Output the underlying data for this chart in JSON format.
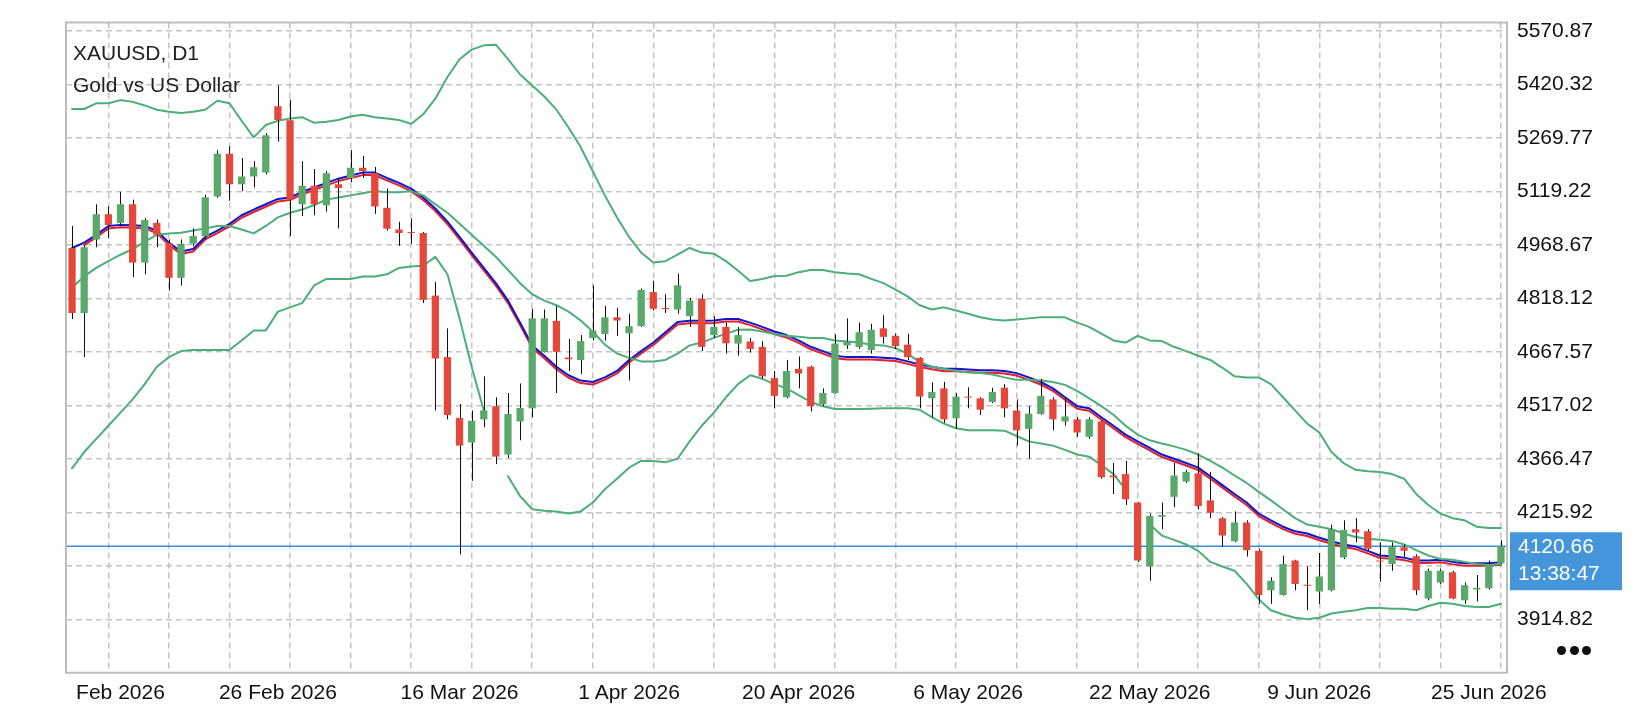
{
  "chart_data": {
    "type": "candlestick",
    "title": "XAUUSD, D1",
    "subtitle": "Gold vs US Dollar",
    "categories": [
      null,
      null,
      null,
      null,
      "Feb 2026",
      null,
      null,
      null,
      null,
      null,
      null,
      null,
      null,
      null,
      null,
      null,
      null,
      "26 Feb 2026",
      null,
      null,
      null,
      null,
      null,
      null,
      null,
      null,
      null,
      null,
      null,
      null,
      null,
      null,
      "16 Mar 2026",
      null,
      null,
      null,
      null,
      null,
      null,
      null,
      null,
      null,
      null,
      null,
      null,
      null,
      "1 Apr 2026",
      null,
      null,
      null,
      null,
      null,
      null,
      null,
      null,
      null,
      null,
      null,
      null,
      null,
      "20 Apr 2026",
      null,
      null,
      null,
      null,
      null,
      null,
      null,
      null,
      null,
      null,
      null,
      null,
      null,
      "6 May 2026",
      null,
      null,
      null,
      null,
      null,
      null,
      null,
      null,
      null,
      null,
      null,
      null,
      null,
      null,
      "22 May 2026",
      null,
      null,
      null,
      null,
      null,
      null,
      null,
      null,
      null,
      null,
      null,
      null,
      null,
      "9 Jun 2026",
      null,
      null,
      null,
      null,
      null,
      null,
      null,
      null,
      null,
      null,
      null,
      null,
      null,
      "25 Jun 2026",
      null
    ],
    "ohlc": [
      [
        4960,
        5022,
        4760,
        4777
      ],
      [
        4777,
        4966,
        4653,
        4962
      ],
      [
        4984,
        5083,
        4962,
        5055
      ],
      [
        5055,
        5077,
        4988,
        5025
      ],
      [
        5030,
        5118,
        5022,
        5083
      ],
      [
        5083,
        5096,
        4878,
        4919
      ],
      [
        4919,
        5044,
        4886,
        5039
      ],
      [
        5031,
        5040,
        4962,
        4997
      ],
      [
        4973,
        4984,
        4840,
        4876
      ],
      [
        4876,
        4984,
        4854,
        4972
      ],
      [
        4972,
        5015,
        4965,
        4994
      ],
      [
        4993,
        5110,
        4984,
        5103
      ],
      [
        5105,
        5235,
        5101,
        5225
      ],
      [
        5225,
        5246,
        5093,
        5139
      ],
      [
        5139,
        5213,
        5120,
        5161
      ],
      [
        5161,
        5204,
        5130,
        5187
      ],
      [
        5172,
        5283,
        5167,
        5277
      ],
      [
        5359,
        5417,
        5259,
        5320
      ],
      [
        5319,
        5377,
        4994,
        5096
      ],
      [
        5083,
        5204,
        5050,
        5135
      ],
      [
        5135,
        5182,
        5052,
        5083
      ],
      [
        5080,
        5176,
        5062,
        5170
      ],
      [
        5139,
        5157,
        5015,
        5129
      ],
      [
        5157,
        5236,
        5145,
        5186
      ],
      [
        5186,
        5219,
        5157,
        5176
      ],
      [
        5170,
        5188,
        5056,
        5077
      ],
      [
        5073,
        5127,
        5009,
        5014
      ],
      [
        5012,
        5034,
        4966,
        5002
      ],
      [
        5005,
        5043,
        4972,
        5002
      ],
      [
        5002,
        5005,
        4805,
        4814
      ],
      [
        4826,
        4865,
        4503,
        4649
      ],
      [
        4653,
        4734,
        4478,
        4490
      ],
      [
        4482,
        4521,
        4098,
        4404
      ],
      [
        4413,
        4503,
        4305,
        4474
      ],
      [
        4478,
        4599,
        4456,
        4503
      ],
      [
        4515,
        4540,
        4352,
        4373
      ],
      [
        4379,
        4552,
        4369,
        4493
      ],
      [
        4472,
        4579,
        4419,
        4510
      ],
      [
        4509,
        4789,
        4484,
        4762
      ],
      [
        4667,
        4787,
        4666,
        4762
      ],
      [
        4755,
        4797,
        4552,
        4668
      ],
      [
        4652,
        4704,
        4614,
        4647
      ],
      [
        4645,
        4715,
        4605,
        4698
      ],
      [
        4707,
        4855,
        4700,
        4728
      ],
      [
        4718,
        4797,
        4699,
        4765
      ],
      [
        4765,
        4792,
        4713,
        4756
      ],
      [
        4720,
        4775,
        4587,
        4740
      ],
      [
        4740,
        4846,
        4738,
        4842
      ],
      [
        4836,
        4868,
        4784,
        4789
      ],
      [
        4791,
        4830,
        4777,
        4788
      ],
      [
        4787,
        4888,
        4775,
        4855
      ],
      [
        4768,
        4820,
        4738,
        4812
      ],
      [
        4817,
        4830,
        4670,
        4682
      ],
      [
        4715,
        4768,
        4707,
        4738
      ],
      [
        4738,
        4750,
        4663,
        4692
      ],
      [
        4691,
        4738,
        4657,
        4715
      ],
      [
        4697,
        4707,
        4666,
        4676
      ],
      [
        4682,
        4698,
        4592,
        4599
      ],
      [
        4594,
        4614,
        4509,
        4544
      ],
      [
        4540,
        4645,
        4537,
        4614
      ],
      [
        4620,
        4655,
        4565,
        4607
      ],
      [
        4626,
        4629,
        4500,
        4515
      ],
      [
        4520,
        4565,
        4515,
        4552
      ],
      [
        4552,
        4717,
        4550,
        4691
      ],
      [
        4686,
        4762,
        4676,
        4697
      ],
      [
        4681,
        4750,
        4676,
        4723
      ],
      [
        4673,
        4747,
        4663,
        4730
      ],
      [
        4734,
        4771,
        4691,
        4710
      ],
      [
        4713,
        4719,
        4676,
        4684
      ],
      [
        4688,
        4719,
        4645,
        4653
      ],
      [
        4651,
        4653,
        4509,
        4542
      ],
      [
        4537,
        4582,
        4483,
        4555
      ],
      [
        4565,
        4583,
        4468,
        4478
      ],
      [
        4481,
        4552,
        4451,
        4542
      ],
      [
        4541,
        4568,
        4509,
        4539
      ],
      [
        4537,
        4540,
        4490,
        4505
      ],
      [
        4527,
        4567,
        4524,
        4555
      ],
      [
        4567,
        4577,
        4484,
        4509
      ],
      [
        4503,
        4534,
        4404,
        4447
      ],
      [
        4451,
        4515,
        4367,
        4494
      ],
      [
        4493,
        4592,
        4491,
        4544
      ],
      [
        4534,
        4540,
        4447,
        4478
      ],
      [
        4472,
        4540,
        4460,
        4486
      ],
      [
        4478,
        4484,
        4429,
        4441
      ],
      [
        4429,
        4484,
        4423,
        4478
      ],
      [
        4472,
        4474,
        4311,
        4315
      ],
      [
        4320,
        4355,
        4268,
        4315
      ],
      [
        4324,
        4361,
        4237,
        4253
      ],
      [
        4244,
        4246,
        4077,
        4081
      ],
      [
        4064,
        4213,
        4024,
        4206
      ],
      [
        4204,
        4244,
        4169,
        4209
      ],
      [
        4260,
        4355,
        4231,
        4320
      ],
      [
        4303,
        4336,
        4299,
        4330
      ],
      [
        4326,
        4382,
        4225,
        4234
      ],
      [
        4250,
        4330,
        4200,
        4215
      ],
      [
        4200,
        4203,
        4120,
        4151
      ],
      [
        4135,
        4219,
        4132,
        4188
      ],
      [
        4188,
        4194,
        4092,
        4110
      ],
      [
        4108,
        4114,
        3959,
        3984
      ],
      [
        3997,
        4034,
        3959,
        4024
      ],
      [
        3984,
        4095,
        3982,
        4071
      ],
      [
        4081,
        4083,
        3997,
        4015
      ],
      [
        4013,
        4064,
        3941,
        4010
      ],
      [
        3994,
        4102,
        3959,
        4036
      ],
      [
        3997,
        4182,
        3994,
        4169
      ],
      [
        4089,
        4194,
        4085,
        4167
      ],
      [
        4169,
        4200,
        4132,
        4160
      ],
      [
        4163,
        4169,
        4108,
        4114
      ],
      [
        4081,
        4132,
        4021,
        4078
      ],
      [
        4071,
        4132,
        4052,
        4120
      ],
      [
        4118,
        4126,
        4089,
        4108
      ],
      [
        4093,
        4098,
        3984,
        3997
      ],
      [
        3974,
        4058,
        3969,
        4052
      ],
      [
        4019,
        4058,
        4015,
        4052
      ],
      [
        4048,
        4052,
        3972,
        3974
      ],
      [
        3969,
        4019,
        3959,
        4011
      ],
      [
        3999,
        4040,
        3966,
        4004
      ],
      [
        4003,
        4081,
        3999,
        4071
      ],
      [
        4073,
        4139,
        4071,
        4120.66
      ]
    ],
    "colors": [
      "#e6473b",
      "#5aa86a",
      "#5aa86a",
      "#e6473b",
      "#5aa86a",
      "#e6473b",
      "#5aa86a",
      "#e6473b",
      "#e6473b",
      "#5aa86a",
      "#5aa86a",
      "#5aa86a",
      "#5aa86a",
      "#e6473b",
      "#5aa86a",
      "#5aa86a",
      "#5aa86a",
      "#e6473b",
      "#e6473b",
      "#5aa86a",
      "#e6473b",
      "#5aa86a",
      "#e6473b",
      "#5aa86a",
      "#e6473b",
      "#e6473b",
      "#e6473b",
      "#e6473b",
      "#e6473b",
      "#e6473b",
      "#e6473b",
      "#e6473b",
      "#e6473b",
      "#5aa86a",
      "#5aa86a",
      "#e6473b",
      "#5aa86a",
      "#5aa86a",
      "#5aa86a",
      "#5aa86a",
      "#e6473b",
      "#e6473b",
      "#5aa86a",
      "#5aa86a",
      "#5aa86a",
      "#e6473b",
      "#5aa86a",
      "#5aa86a",
      "#e6473b",
      "#e6473b",
      "#5aa86a",
      "#5aa86a",
      "#e6473b",
      "#5aa86a",
      "#e6473b",
      "#5aa86a",
      "#e6473b",
      "#e6473b",
      "#e6473b",
      "#5aa86a",
      "#e6473b",
      "#e6473b",
      "#5aa86a",
      "#5aa86a",
      "#5aa86a",
      "#5aa86a",
      "#5aa86a",
      "#e6473b",
      "#e6473b",
      "#e6473b",
      "#e6473b",
      "#5aa86a",
      "#e6473b",
      "#5aa86a",
      "#e6473b",
      "#e6473b",
      "#5aa86a",
      "#e6473b",
      "#e6473b",
      "#5aa86a",
      "#5aa86a",
      "#e6473b",
      "#5aa86a",
      "#e6473b",
      "#5aa86a",
      "#e6473b",
      "#e6473b",
      "#e6473b",
      "#e6473b",
      "#5aa86a",
      "#5aa86a",
      "#5aa86a",
      "#5aa86a",
      "#e6473b",
      "#e6473b",
      "#e6473b",
      "#5aa86a",
      "#e6473b",
      "#e6473b",
      "#5aa86a",
      "#5aa86a",
      "#e6473b",
      "#e6473b",
      "#5aa86a",
      "#5aa86a",
      "#5aa86a",
      "#e6473b",
      "#e6473b",
      "#e6473b",
      "#5aa86a",
      "#e6473b",
      "#e6473b",
      "#5aa86a",
      "#5aa86a",
      "#e6473b",
      "#5aa86a",
      "#5aa86a",
      "#5aa86a",
      "#5aa86a"
    ],
    "series": [
      {
        "type": "line",
        "color": "#4cae78",
        "values": [
          5351,
          5351,
          5367,
          5367,
          5376,
          5371,
          5361,
          5349,
          5343,
          5340,
          5343,
          5349,
          5374,
          5367,
          5318,
          5271,
          5306,
          5318,
          5324,
          5328,
          5312,
          5315,
          5320,
          5330,
          5335,
          5328,
          5324,
          5320,
          5309,
          5336,
          5380,
          5441,
          5491,
          5518,
          5530,
          5532,
          5491,
          5448,
          5417,
          5386,
          5349,
          5299,
          5244,
          5176,
          5108,
          5046,
          4991,
          4947,
          4919,
          4923,
          4941,
          4960,
          4947,
          4944,
          4923,
          4896,
          4867,
          4873,
          4881,
          4882,
          4892,
          4898,
          4898,
          4892,
          4888,
          4886,
          4873,
          4861,
          4843,
          4824,
          4799,
          4787,
          4793,
          4784,
          4775,
          4765,
          4759,
          4756,
          4759,
          4762,
          4765,
          4765,
          4765,
          4750,
          4738,
          4719,
          4700,
          4694,
          4713,
          4700,
          4698,
          4682,
          4670,
          4657,
          4645,
          4623,
          4599,
          4596,
          4596,
          4577,
          4540,
          4503,
          4466,
          4441,
          4386,
          4355,
          4336,
          4332,
          4330,
          4324,
          4311,
          4268,
          4237,
          4213,
          4200,
          4194,
          4176,
          4172,
          4172
        ]
      },
      {
        "type": "line",
        "color": "#4cae78",
        "values": [
          4849,
          4880,
          4904,
          4923,
          4941,
          4957,
          4978,
          4997,
          5001,
          5003,
          5009,
          5015,
          5022,
          5022,
          5012,
          5001,
          5022,
          5046,
          5059,
          5068,
          5081,
          5096,
          5102,
          5108,
          5114,
          5120,
          5117,
          5117,
          5120,
          5108,
          5083,
          5059,
          5028,
          4997,
          4966,
          4935,
          4898,
          4861,
          4830,
          4812,
          4799,
          4781,
          4756,
          4725,
          4688,
          4663,
          4651,
          4641,
          4641,
          4645,
          4663,
          4686,
          4694,
          4707,
          4719,
          4730,
          4731,
          4725,
          4718,
          4713,
          4710,
          4707,
          4707,
          4700,
          4697,
          4694,
          4688,
          4686,
          4678,
          4663,
          4639,
          4626,
          4620,
          4614,
          4610,
          4608,
          4604,
          4596,
          4589,
          4589,
          4587,
          4583,
          4575,
          4558,
          4537,
          4515,
          4491,
          4460,
          4435,
          4419,
          4410,
          4402,
          4392,
          4379,
          4361,
          4342,
          4320,
          4299,
          4274,
          4250,
          4225,
          4200,
          4182,
          4176,
          4169,
          4157,
          4147,
          4142,
          4139,
          4136,
          4126,
          4110,
          4095,
          4085,
          4083,
          4077,
          4071,
          4068,
          4071
        ]
      },
      {
        "type": "line",
        "color": "#4cae78",
        "values": [
          4340,
          4386,
          4423,
          4460,
          4497,
          4534,
          4577,
          4626,
          4653,
          4670,
          4673,
          4673,
          4673,
          4673,
          4700,
          4728,
          4728,
          4781,
          4793,
          4805,
          4855,
          4873,
          4873,
          4873,
          4880,
          4880,
          4886,
          4904,
          4908,
          4910,
          4935,
          4886,
          4762,
          4626,
          4503,
          null,
          4318,
          4262,
          4225,
          4221,
          4219,
          4213,
          4219,
          4244,
          4281,
          4311,
          4342,
          4361,
          4361,
          4357,
          4367,
          4416,
          4460,
          4497,
          4540,
          4577,
          4602,
          4592,
          4577,
          4565,
          4546,
          4527,
          4515,
          4507,
          4507,
          4507,
          4508,
          4509,
          4509,
          4509,
          4505,
          4484,
          4466,
          4453,
          4447,
          4447,
          4447,
          4446,
          4431,
          4416,
          4410,
          4404,
          4392,
          4379,
          4373,
          4349,
          4324,
          4281,
          null,
          4182,
          4151,
          4139,
          4126,
          4108,
          4077,
          4064,
          4052,
          4015,
          3972,
          3941,
          3929,
          3920,
          3916,
          3920,
          3932,
          3937,
          3941,
          3947,
          3947,
          3945,
          3945,
          3941,
          3953,
          3962,
          3959,
          3953,
          3950,
          3950,
          3959
        ]
      },
      {
        "type": "line",
        "color": "#1414c8",
        "values": [
          4960,
          4975,
          4997,
          5022,
          5025,
          5024,
          5022,
          5009,
          4975,
          4950,
          4957,
          4991,
          5009,
          5028,
          5052,
          5068,
          5083,
          5098,
          5102,
          5118,
          5130,
          5143,
          5155,
          5164,
          5172,
          5172,
          5157,
          5143,
          5127,
          5102,
          5071,
          5034,
          4991,
          4947,
          4904,
          4861,
          4812,
          4750,
          4686,
          4657,
          4626,
          4602,
          4587,
          4583,
          4596,
          4614,
          4645,
          4670,
          4694,
          4723,
          4752,
          4755,
          4755,
          4756,
          4760,
          4760,
          4750,
          4738,
          4725,
          4715,
          4700,
          4682,
          4670,
          4657,
          4653,
          4653,
          4653,
          4651,
          4649,
          4641,
          4632,
          4626,
          4620,
          4620,
          4618,
          4616,
          4616,
          4614,
          4608,
          4596,
          4583,
          4565,
          4540,
          4515,
          4509,
          4484,
          4460,
          4435,
          4416,
          4398,
          4379,
          4367,
          4355,
          4342,
          4318,
          4293,
          4268,
          4244,
          4213,
          4194,
          4176,
          4163,
          4157,
          4145,
          4135,
          4126,
          4120,
          4108,
          4095,
          4093,
          4089,
          4081,
          4081,
          4083,
          4077,
          4073,
          4073,
          4073,
          4076
        ]
      },
      {
        "type": "line",
        "color": "#e0202a",
        "values": [
          null,
          4968,
          4990,
          5015,
          5018,
          5017,
          5015,
          5002,
          4968,
          4943,
          4950,
          4984,
          5002,
          5021,
          5045,
          5061,
          5076,
          5091,
          5095,
          5111,
          5123,
          5136,
          5148,
          5157,
          5165,
          5165,
          5150,
          5136,
          5120,
          5095,
          5064,
          5027,
          4984,
          4940,
          4897,
          4854,
          4805,
          4743,
          4679,
          4650,
          4619,
          4595,
          4580,
          4576,
          4589,
          4607,
          4638,
          4663,
          4687,
          4716,
          4745,
          4748,
          4748,
          4749,
          4753,
          4753,
          4743,
          4731,
          4718,
          4708,
          4693,
          4675,
          4663,
          4650,
          4646,
          4646,
          4646,
          4644,
          4642,
          4634,
          4625,
          4619,
          4613,
          4613,
          4611,
          4609,
          4609,
          4607,
          4601,
          4589,
          4576,
          4558,
          4533,
          4508,
          4502,
          4477,
          4453,
          4428,
          4409,
          4391,
          4372,
          4360,
          4348,
          4335,
          4311,
          4286,
          4261,
          4237,
          4206,
          4187,
          4169,
          4156,
          4150,
          4138,
          4128,
          4119,
          4113,
          4101,
          4088,
          4086,
          4082,
          4074,
          4074,
          4076,
          4070,
          4066,
          4066,
          4066,
          4069
        ]
      }
    ],
    "ylim": [
      3765,
      5594
    ],
    "yticks": [
      3914.82,
      {
        "value": 4065.37,
        "label": null
      },
      4215.92,
      4366.47,
      4517.02,
      4667.57,
      4818.12,
      4968.67,
      5119.22,
      5269.77,
      5420.32,
      5570.87
    ],
    "grid": true,
    "ref_lines": [
      {
        "axis": "y",
        "value": 4120.66,
        "label": "4120.66",
        "color": "#3a8fd8"
      }
    ],
    "annotations": [
      "13:38:47"
    ]
  }
}
